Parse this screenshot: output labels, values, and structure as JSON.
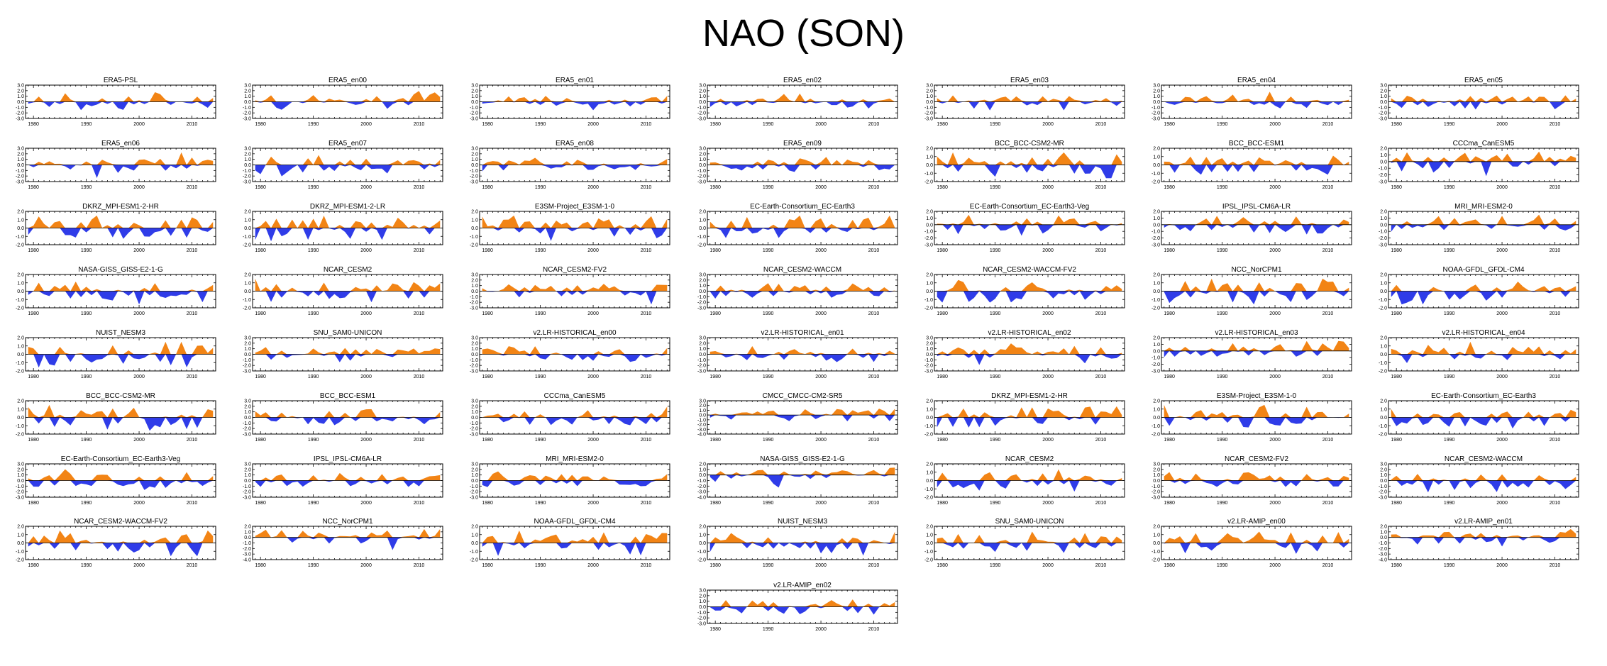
{
  "title": "NAO (SON)",
  "colors": {
    "positive": "#f28415",
    "negative": "#2f3ce8",
    "axis": "#000000"
  },
  "chart_data": {
    "type": "area",
    "title": "NAO (SON)",
    "x_tick_labels": [
      "1980",
      "1990",
      "2000",
      "2010"
    ],
    "x_range": [
      1979,
      2014
    ],
    "y_tick_sets": {
      "A": [
        "3.0",
        "2.0",
        "1.0",
        "0.0",
        "-1.0",
        "-2.0",
        "-3.0"
      ],
      "B": [
        "2.0",
        "1.0",
        "0.0",
        "-1.0",
        "-2.0"
      ],
      "C": [
        "2.0",
        "1.0",
        "0.0",
        "-1.0",
        "-2.0",
        "-3.0"
      ],
      "D": [
        "3.0",
        "2.0",
        "1.0",
        "0.0",
        "-1.0",
        "-2.0",
        "-3.0",
        "-4.0"
      ],
      "E": [
        "2.0",
        "1.0",
        "0.0",
        "-1.0",
        "-2.0",
        "-3.0",
        "-4.0"
      ]
    },
    "panels": [
      {
        "name": "ERA5-PSL",
        "yticks": "A"
      },
      {
        "name": "ERA5_en00",
        "yticks": "A"
      },
      {
        "name": "ERA5_en01",
        "yticks": "A"
      },
      {
        "name": "ERA5_en02",
        "yticks": "A"
      },
      {
        "name": "ERA5_en03",
        "yticks": "A"
      },
      {
        "name": "ERA5_en04",
        "yticks": "A"
      },
      {
        "name": "ERA5_en05",
        "yticks": "A"
      },
      {
        "name": "ERA5_en06",
        "yticks": "A"
      },
      {
        "name": "ERA5_en07",
        "yticks": "A"
      },
      {
        "name": "ERA5_en08",
        "yticks": "A"
      },
      {
        "name": "ERA5_en09",
        "yticks": "A"
      },
      {
        "name": "BCC_BCC-CSM2-MR",
        "yticks": "B"
      },
      {
        "name": "BCC_BCC-ESM1",
        "yticks": "B"
      },
      {
        "name": "CCCma_CanESM5",
        "yticks": "C"
      },
      {
        "name": "DKRZ_MPI-ESM1-2-HR",
        "yticks": "B"
      },
      {
        "name": "DKRZ_MPI-ESM1-2-LR",
        "yticks": "B"
      },
      {
        "name": "E3SM-Project_E3SM-1-0",
        "yticks": "B"
      },
      {
        "name": "EC-Earth-Consortium_EC-Earth3",
        "yticks": "B"
      },
      {
        "name": "EC-Earth-Consortium_EC-Earth3-Veg",
        "yticks": "C"
      },
      {
        "name": "IPSL_IPSL-CM6A-LR",
        "yticks": "C"
      },
      {
        "name": "MRI_MRI-ESM2-0",
        "yticks": "C"
      },
      {
        "name": "NASA-GISS_GISS-E2-1-G",
        "yticks": "B"
      },
      {
        "name": "NCAR_CESM2",
        "yticks": "B"
      },
      {
        "name": "NCAR_CESM2-FV2",
        "yticks": "A"
      },
      {
        "name": "NCAR_CESM2-WACCM",
        "yticks": "A"
      },
      {
        "name": "NCAR_CESM2-WACCM-FV2",
        "yticks": "B"
      },
      {
        "name": "NCC_NorCPM1",
        "yticks": "B"
      },
      {
        "name": "NOAA-GFDL_GFDL-CM4",
        "yticks": "B"
      },
      {
        "name": "NUIST_NESM3",
        "yticks": "B"
      },
      {
        "name": "SNU_SAM0-UNICON",
        "yticks": "A"
      },
      {
        "name": "v2.LR-HISTORICAL_en00",
        "yticks": "A"
      },
      {
        "name": "v2.LR-HISTORICAL_en01",
        "yticks": "A"
      },
      {
        "name": "v2.LR-HISTORICAL_en02",
        "yticks": "A"
      },
      {
        "name": "v2.LR-HISTORICAL_en03",
        "yticks": "C"
      },
      {
        "name": "v2.LR-HISTORICAL_en04",
        "yticks": "B"
      },
      {
        "name": "BCC_BCC-CSM2-MR",
        "yticks": "B"
      },
      {
        "name": "BCC_BCC-ESM1",
        "yticks": "A"
      },
      {
        "name": "CCCma_CanESM5",
        "yticks": "A"
      },
      {
        "name": "CMCC_CMCC-CM2-SR5",
        "yticks": "D"
      },
      {
        "name": "DKRZ_MPI-ESM1-2-HR",
        "yticks": "B"
      },
      {
        "name": "E3SM-Project_E3SM-1-0",
        "yticks": "B"
      },
      {
        "name": "EC-Earth-Consortium_EC-Earth3",
        "yticks": "B"
      },
      {
        "name": "EC-Earth-Consortium_EC-Earth3-Veg",
        "yticks": "A"
      },
      {
        "name": "IPSL_IPSL-CM6A-LR",
        "yticks": "A"
      },
      {
        "name": "MRI_MRI-ESM2-0",
        "yticks": "A"
      },
      {
        "name": "NASA-GISS_GISS-E2-1-G",
        "yticks": "E"
      },
      {
        "name": "NCAR_CESM2",
        "yticks": "B"
      },
      {
        "name": "NCAR_CESM2-FV2",
        "yticks": "A"
      },
      {
        "name": "NCAR_CESM2-WACCM",
        "yticks": "A"
      },
      {
        "name": "NCAR_CESM2-WACCM-FV2",
        "yticks": "B"
      },
      {
        "name": "NCC_NorCPM1",
        "yticks": "E"
      },
      {
        "name": "NOAA-GFDL_GFDL-CM4",
        "yticks": "B"
      },
      {
        "name": "NUIST_NESM3",
        "yticks": "B"
      },
      {
        "name": "SNU_SAM0-UNICON",
        "yticks": "B"
      },
      {
        "name": "v2.LR-AMIP_en00",
        "yticks": "B"
      },
      {
        "name": "v2.LR-AMIP_en01",
        "yticks": "E"
      },
      {
        "name": "v2.LR-AMIP_en02",
        "yticks": "A"
      }
    ]
  }
}
